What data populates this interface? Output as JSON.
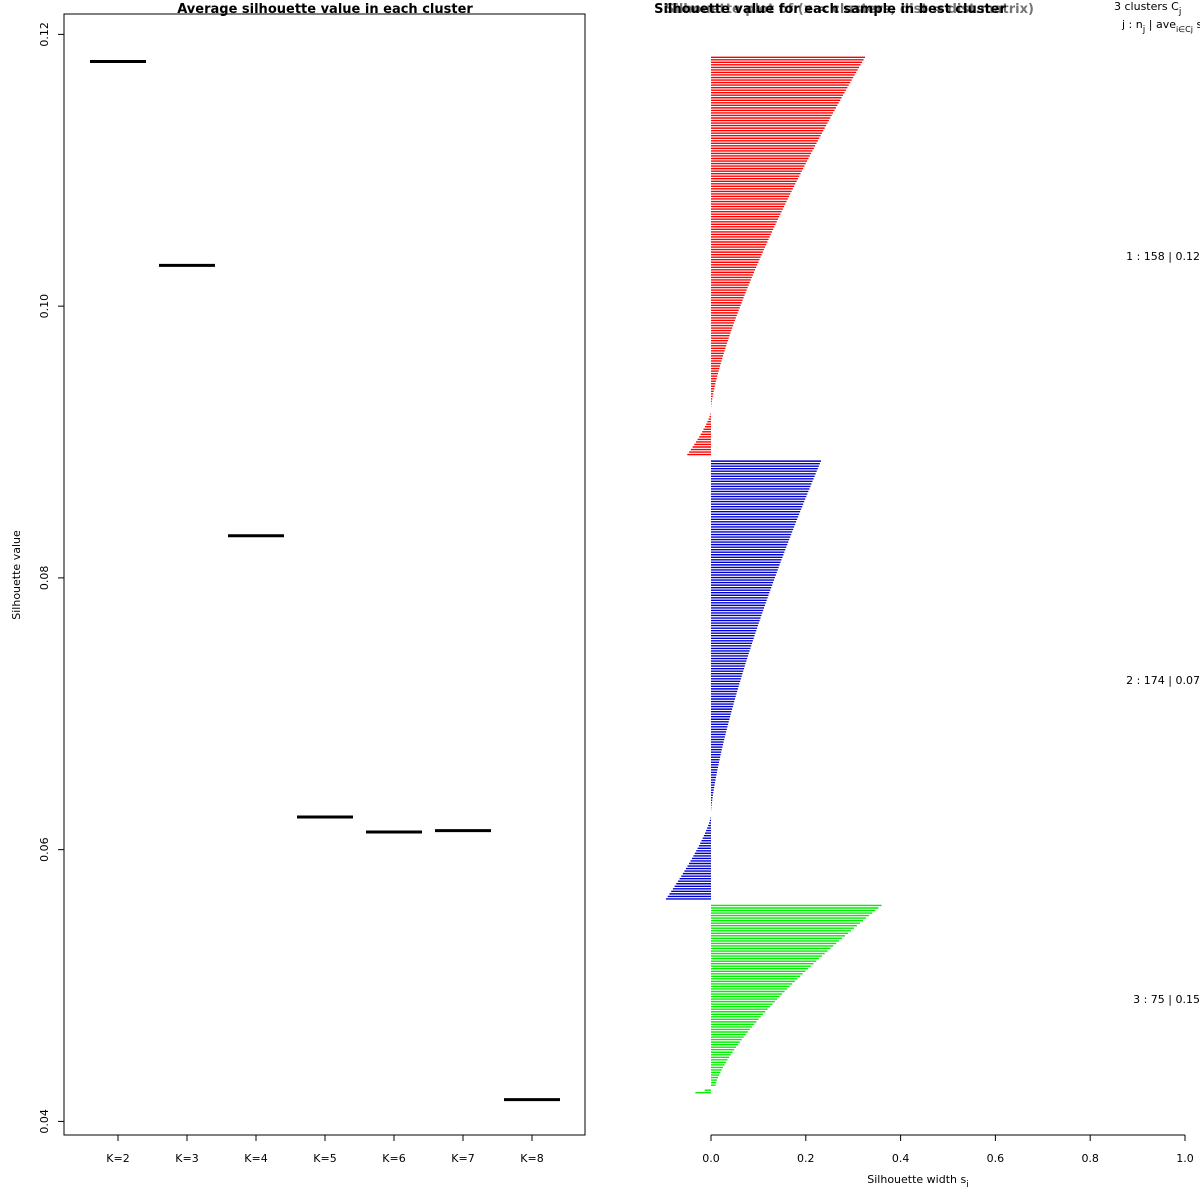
{
  "chart_data": [
    {
      "type": "line",
      "title": "Average silhouette value in each cluster",
      "xlabel": "",
      "ylabel": "Silhouette value",
      "categories": [
        "K=2",
        "K=3",
        "K=4",
        "K=5",
        "K=6",
        "K=7",
        "K=8"
      ],
      "values": [
        0.118,
        0.103,
        0.0831,
        0.0624,
        0.0613,
        0.0614,
        0.0416
      ],
      "yticks": [
        "0.04",
        "0.06",
        "0.08",
        "0.10",
        "0.12"
      ],
      "ylim": [
        0.039,
        0.1215
      ],
      "color": "#000000"
    },
    {
      "type": "bar",
      "title": "Silhouette value for each sample in best cluster",
      "title_overlay": "Silhouette plot of (x = clusters, dist = dist.matrix)",
      "xlabel": "Silhouette width s",
      "xlabel_sub": "i",
      "xticks": [
        "0.0",
        "0.2",
        "0.4",
        "0.6",
        "0.8",
        "1.0"
      ],
      "xlim": [
        0,
        1
      ],
      "legend_header": "3 clusters C",
      "legend_header_sub": "j",
      "legend_subheader": "j :  n",
      "legend_subheader_rest": " | ave",
      "legend_subheader_sub2": "i∈Cj",
      "legend_subheader_tail": " s",
      "clusters": [
        {
          "id": 1,
          "n": 158,
          "avg": "0.12",
          "label": "1 :  158  |  0.12",
          "color": "#ff0000",
          "positive_max": 0.325,
          "positive_min": 0.0,
          "neg_count": 18,
          "neg_min": -0.05
        },
        {
          "id": 2,
          "n": 174,
          "avg": "0.07",
          "label": "2 :  174  |  0.07",
          "color": "#0000cd",
          "positive_max": 0.232,
          "positive_min": 0.0,
          "neg_count": 34,
          "neg_min": -0.095
        },
        {
          "id": 3,
          "n": 75,
          "avg": "0.15",
          "label": "3 :  75  |  0.15",
          "color": "#00ee00",
          "positive_max": 0.36,
          "positive_min": 0.01,
          "neg_count": 3,
          "neg_min": -0.033
        }
      ]
    }
  ]
}
